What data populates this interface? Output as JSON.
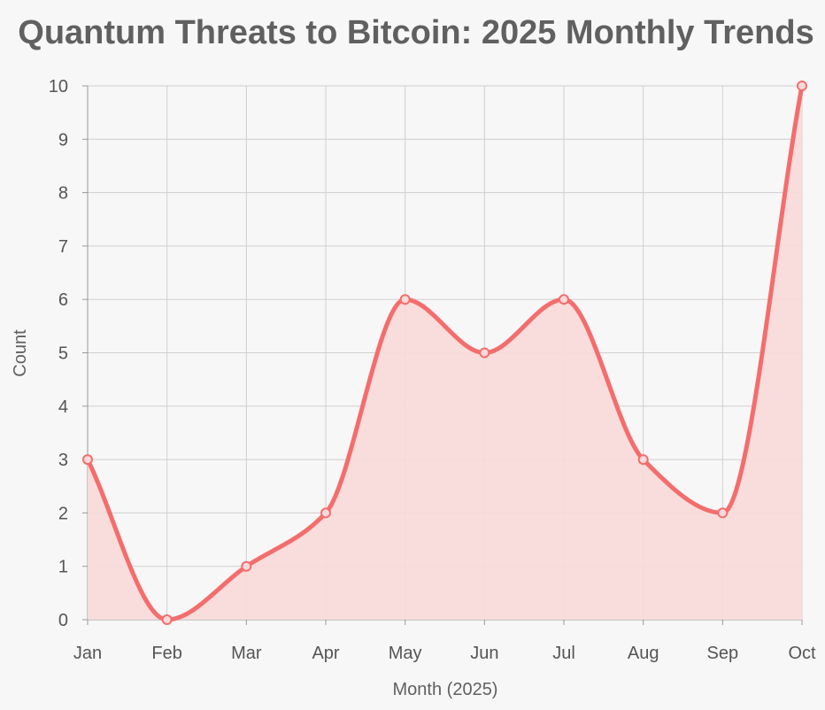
{
  "chart_data": {
    "type": "area",
    "title": "Quantum Threats to Bitcoin: 2025 Monthly Trends",
    "xlabel": "Month (2025)",
    "ylabel": "Count",
    "categories": [
      "Jan",
      "Feb",
      "Mar",
      "Apr",
      "May",
      "Jun",
      "Jul",
      "Aug",
      "Sep",
      "Oct"
    ],
    "values": [
      3,
      0,
      1,
      2,
      6,
      5,
      6,
      3,
      2,
      10
    ],
    "ylim": [
      0,
      10
    ],
    "yticks": [
      0,
      1,
      2,
      3,
      4,
      5,
      6,
      7,
      8,
      9,
      10
    ],
    "grid": true,
    "legend": "none",
    "colors": {
      "line": "#f46d6d",
      "fill": "#f9d9d9",
      "grid": "#cfcfcf",
      "background": "#f6f7f6"
    }
  }
}
